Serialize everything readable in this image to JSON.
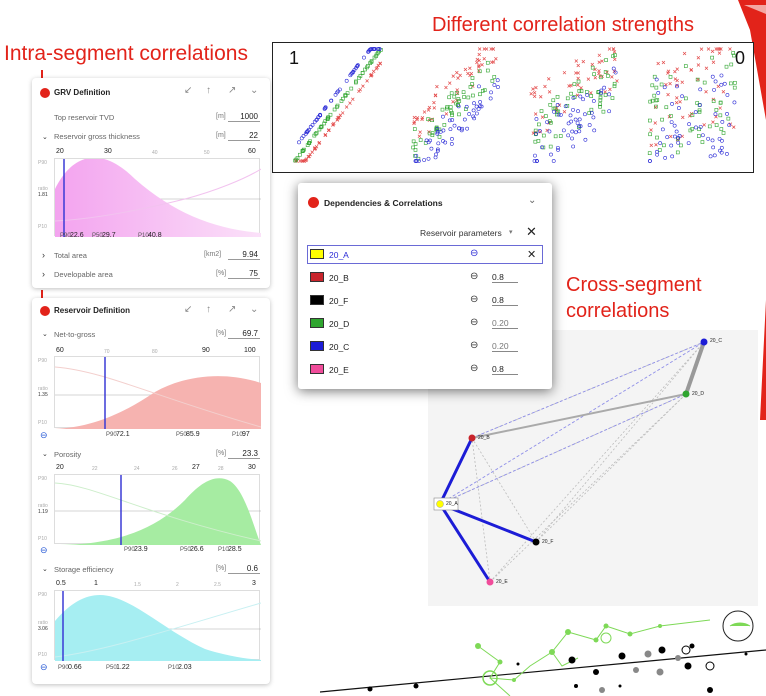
{
  "headings": {
    "intra": "Intra-segment correlations",
    "strengths": "Different correlation strengths",
    "cross_line1": "Cross-segment",
    "cross_line2": "correlations"
  },
  "strength_labels": {
    "left": "1",
    "right": "0"
  },
  "colors": {
    "red": "#e2231a",
    "pink": "#f5a3ec",
    "salmon": "#f4a09e",
    "green": "#8fe08a",
    "cyan": "#8fe9ee",
    "blue": "#2b2bd6"
  },
  "grv": {
    "title": "GRV Definition",
    "rows": [
      {
        "label": "Top reservoir TVD",
        "unit": "[m]",
        "value": "1000"
      },
      {
        "label": "Reservoir gross thickness",
        "unit": "[m]",
        "value": "22"
      },
      {
        "label": "Total area",
        "unit": "[km2]",
        "value": "9.94"
      },
      {
        "label": "Developable area",
        "unit": "[%]",
        "value": "75"
      }
    ],
    "chart": {
      "ticks_main": [
        "20",
        "30",
        "60"
      ],
      "ticks_minor": [
        "40",
        "50"
      ],
      "ylabels": [
        "P90",
        "ratio",
        "1.81",
        "P10"
      ],
      "p90": "22.6",
      "p50": "29.7",
      "p10": "40.8",
      "p90_label": "P90",
      "p50_label": "P50",
      "p10_label": "P10"
    }
  },
  "reservoir": {
    "title": "Reservoir Definition",
    "sections": [
      {
        "label": "Net-to-gross",
        "unit": "[%]",
        "value": "69.7",
        "ticks_main": [
          "60",
          "90",
          "100"
        ],
        "ticks_minor": [
          "70",
          "80"
        ],
        "ylabels": [
          "P90",
          "ratio",
          "1.35",
          "P10"
        ],
        "p90": "72.1",
        "p50": "85.9",
        "p10": "97"
      },
      {
        "label": "Porosity",
        "unit": "[%]",
        "value": "23.3",
        "ticks_main": [
          "20",
          "27",
          "28",
          "30"
        ],
        "ticks_minor": [
          "22",
          "24",
          "26"
        ],
        "ylabels": [
          "P90",
          "ratio",
          "1.19",
          "P10"
        ],
        "p90": "23.9",
        "p50": "26.6",
        "p10": "28.5"
      },
      {
        "label": "Storage efficiency",
        "unit": "[%]",
        "value": "0.6",
        "ticks_main": [
          "0.5",
          "1",
          "3"
        ],
        "ticks_minor": [
          "1.5",
          "2",
          "2.5"
        ],
        "ylabels": [
          "P90",
          "ratio",
          "3.06",
          "P10"
        ],
        "p90": "0.66",
        "p50": "1.22",
        "p10": "2.03"
      }
    ],
    "p_labels": [
      "P90",
      "P50",
      "P10"
    ]
  },
  "deps": {
    "title": "Dependencies & Correlations",
    "filter": "Reservoir parameters",
    "rows": [
      {
        "name": "20_A",
        "color": "#ffff00",
        "value": ""
      },
      {
        "name": "20_B",
        "color": "#c8242b",
        "value": "0.8"
      },
      {
        "name": "20_F",
        "color": "#000000",
        "value": "0.8"
      },
      {
        "name": "20_D",
        "color": "#2fa52f",
        "value": "0.20"
      },
      {
        "name": "20_C",
        "color": "#1c1cd6",
        "value": "0.20"
      },
      {
        "name": "20_E",
        "color": "#f04c9a",
        "value": "0.8"
      }
    ]
  },
  "graph": {
    "nodes": [
      "20_C",
      "20_D",
      "20_B",
      "20_A",
      "20_F",
      "20_E"
    ]
  }
}
